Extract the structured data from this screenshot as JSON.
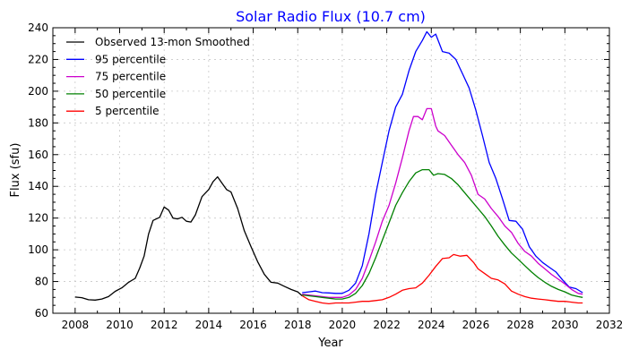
{
  "chart_data": {
    "type": "line",
    "title": "Solar Radio Flux (10.7 cm)",
    "title_color": "#0000ff",
    "xlabel": "Year",
    "ylabel": "Flux (sfu)",
    "xlim": [
      2007,
      2032
    ],
    "ylim": [
      60,
      240
    ],
    "xticks": [
      2008,
      2010,
      2012,
      2014,
      2016,
      2018,
      2020,
      2022,
      2024,
      2026,
      2028,
      2030,
      2032
    ],
    "yticks": [
      60,
      80,
      100,
      120,
      140,
      160,
      180,
      200,
      220,
      240
    ],
    "grid": true,
    "legend_position": "top-left",
    "series": [
      {
        "name": "Observed 13-mon Smoothed",
        "color": "#000000",
        "x": [
          2008.0,
          2008.3,
          2008.6,
          2008.9,
          2009.2,
          2009.5,
          2009.8,
          2010.1,
          2010.4,
          2010.7,
          2010.9,
          2011.1,
          2011.3,
          2011.5,
          2011.8,
          2012.0,
          2012.2,
          2012.4,
          2012.6,
          2012.8,
          2013.0,
          2013.2,
          2013.4,
          2013.7,
          2014.0,
          2014.2,
          2014.4,
          2014.6,
          2014.8,
          2015.0,
          2015.3,
          2015.6,
          2015.9,
          2016.2,
          2016.5,
          2016.8,
          2017.1,
          2017.4,
          2017.7,
          2018.0,
          2018.2
        ],
        "y": [
          70.2,
          69.8,
          68.5,
          68.3,
          69.0,
          70.5,
          73.8,
          76.0,
          79.5,
          82.0,
          88.5,
          96.0,
          110.0,
          118.5,
          120.5,
          127.0,
          125.0,
          120.0,
          119.5,
          120.5,
          118.0,
          117.5,
          122.0,
          133.5,
          138.0,
          143.0,
          146.0,
          142.0,
          138.0,
          136.5,
          126.0,
          112.0,
          102.0,
          92.5,
          84.5,
          79.5,
          79.0,
          77.0,
          75.0,
          73.5,
          71.0
        ]
      },
      {
        "name": "95 percentile",
        "color": "#0000ff",
        "x": [
          2018.2,
          2018.5,
          2018.8,
          2019.1,
          2019.4,
          2019.7,
          2020.0,
          2020.3,
          2020.6,
          2020.9,
          2021.2,
          2021.5,
          2021.8,
          2022.1,
          2022.4,
          2022.7,
          2023.0,
          2023.3,
          2023.6,
          2023.8,
          2024.0,
          2024.2,
          2024.5,
          2024.8,
          2025.1,
          2025.4,
          2025.7,
          2026.0,
          2026.3,
          2026.6,
          2026.9,
          2027.2,
          2027.5,
          2027.8,
          2028.1,
          2028.4,
          2028.7,
          2029.0,
          2029.3,
          2029.6,
          2029.9,
          2030.2,
          2030.5,
          2030.8
        ],
        "y": [
          73.0,
          73.5,
          74.0,
          73.0,
          72.8,
          72.5,
          72.5,
          74.5,
          79.0,
          90.0,
          110.0,
          135.0,
          155.0,
          175.0,
          190.0,
          198.0,
          213.0,
          225.0,
          232.0,
          237.5,
          234.0,
          236.0,
          225.0,
          224.0,
          220.0,
          211.0,
          202.0,
          188.0,
          172.0,
          155.0,
          145.0,
          132.0,
          118.5,
          118.0,
          113.0,
          102.0,
          96.0,
          92.0,
          89.0,
          86.0,
          81.0,
          76.5,
          75.5,
          73.0
        ]
      },
      {
        "name": "75 percentile",
        "color": "#cc00cc",
        "x": [
          2018.2,
          2018.5,
          2018.8,
          2019.1,
          2019.4,
          2019.7,
          2020.0,
          2020.3,
          2020.6,
          2020.9,
          2021.2,
          2021.5,
          2021.8,
          2022.1,
          2022.4,
          2022.7,
          2023.0,
          2023.2,
          2023.4,
          2023.6,
          2023.8,
          2024.0,
          2024.2,
          2024.3,
          2024.6,
          2024.9,
          2025.2,
          2025.5,
          2025.8,
          2026.1,
          2026.4,
          2026.7,
          2027.0,
          2027.3,
          2027.6,
          2027.9,
          2028.2,
          2028.5,
          2028.8,
          2029.1,
          2029.4,
          2029.7,
          2030.0,
          2030.3,
          2030.6,
          2030.8
        ],
        "y": [
          72.0,
          71.5,
          71.0,
          70.5,
          70.0,
          70.0,
          70.0,
          71.5,
          75.0,
          82.0,
          93.0,
          105.0,
          118.0,
          128.0,
          142.0,
          158.0,
          175.0,
          184.0,
          184.0,
          182.0,
          189.0,
          189.0,
          178.0,
          175.0,
          172.0,
          166.0,
          160.0,
          155.0,
          147.0,
          135.0,
          132.0,
          126.0,
          121.0,
          115.0,
          111.0,
          104.0,
          99.0,
          96.0,
          91.5,
          88.0,
          84.5,
          81.5,
          78.5,
          75.0,
          72.5,
          72.0
        ]
      },
      {
        "name": "50 percentile",
        "color": "#008000",
        "x": [
          2018.2,
          2018.5,
          2018.8,
          2019.1,
          2019.4,
          2019.7,
          2020.0,
          2020.3,
          2020.6,
          2020.9,
          2021.2,
          2021.5,
          2021.8,
          2022.1,
          2022.4,
          2022.7,
          2023.0,
          2023.3,
          2023.6,
          2023.9,
          2024.1,
          2024.3,
          2024.6,
          2024.9,
          2025.2,
          2025.5,
          2025.8,
          2026.1,
          2026.4,
          2026.7,
          2027.0,
          2027.3,
          2027.6,
          2027.9,
          2028.2,
          2028.5,
          2028.8,
          2029.1,
          2029.4,
          2029.7,
          2030.0,
          2030.3,
          2030.6,
          2030.8
        ],
        "y": [
          71.5,
          71.0,
          70.5,
          70.0,
          69.5,
          69.0,
          69.0,
          70.0,
          72.5,
          77.5,
          85.0,
          95.0,
          106.0,
          117.0,
          128.0,
          136.0,
          143.0,
          148.5,
          150.5,
          150.5,
          147.0,
          148.0,
          147.5,
          145.0,
          141.0,
          136.0,
          131.0,
          126.0,
          121.0,
          115.0,
          108.5,
          103.0,
          98.0,
          94.0,
          90.0,
          86.0,
          82.5,
          79.5,
          77.0,
          75.0,
          73.5,
          71.5,
          70.5,
          70.0
        ]
      },
      {
        "name": "5 percentile",
        "color": "#ff0000",
        "x": [
          2018.2,
          2018.5,
          2018.8,
          2019.1,
          2019.4,
          2019.7,
          2020.0,
          2020.3,
          2020.6,
          2020.9,
          2021.2,
          2021.5,
          2021.8,
          2022.1,
          2022.4,
          2022.7,
          2023.0,
          2023.3,
          2023.6,
          2023.9,
          2024.2,
          2024.5,
          2024.8,
          2025.0,
          2025.3,
          2025.6,
          2025.9,
          2026.1,
          2026.4,
          2026.7,
          2027.0,
          2027.3,
          2027.6,
          2027.9,
          2028.2,
          2028.5,
          2028.8,
          2029.1,
          2029.4,
          2029.7,
          2030.0,
          2030.3,
          2030.6,
          2030.8
        ],
        "y": [
          71.0,
          68.5,
          67.5,
          66.5,
          66.0,
          66.5,
          66.5,
          66.5,
          67.0,
          67.5,
          67.5,
          68.0,
          68.5,
          70.0,
          72.0,
          74.5,
          75.5,
          76.0,
          79.0,
          84.0,
          89.5,
          94.5,
          95.0,
          97.0,
          96.0,
          96.5,
          92.0,
          88.0,
          85.0,
          82.0,
          81.0,
          78.5,
          74.0,
          72.0,
          70.5,
          69.5,
          69.0,
          68.5,
          68.0,
          67.5,
          67.5,
          67.0,
          66.5,
          66.5
        ]
      }
    ]
  }
}
